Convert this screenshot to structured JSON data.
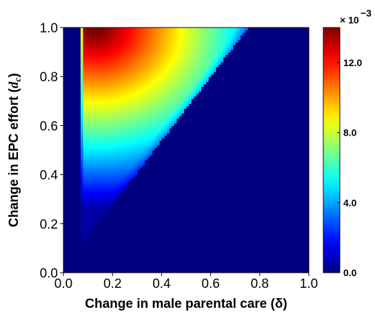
{
  "chart_data": {
    "type": "heatmap",
    "title": "",
    "xlabel": "Change in male parental care (δ)",
    "ylabel": "Change in EPC effort (d_c)",
    "ylabel_parts": {
      "main": "Change in EPC effort (",
      "symbol": "d",
      "sub": "c",
      "close": ")"
    },
    "xlim": [
      0.0,
      1.0
    ],
    "ylim": [
      0.0,
      1.0
    ],
    "x_ticks": [
      "0.0",
      "0.2",
      "0.4",
      "0.6",
      "0.8",
      "1.0"
    ],
    "y_ticks": [
      "0.0",
      "0.2",
      "0.4",
      "0.6",
      "0.8",
      "1.0"
    ],
    "background_value": 0.0,
    "colorbar": {
      "colormap": "jet",
      "range": [
        0.0,
        14.0
      ],
      "scale_label": "× 10",
      "scale_exponent": "−3",
      "ticks": [
        {
          "value": 0.0,
          "label": "0.0"
        },
        {
          "value": 4.0,
          "label": "4.0"
        },
        {
          "value": 8.0,
          "label": "8.0"
        },
        {
          "value": 12.0,
          "label": "12.0"
        }
      ]
    },
    "nonzero_region": {
      "description_points": [
        {
          "x": 0.07,
          "y": 0.11
        },
        {
          "x": 0.07,
          "y": 1.0
        },
        {
          "x": 0.75,
          "y": 1.0
        }
      ],
      "peak": {
        "x": 0.13,
        "y": 1.0,
        "value": 14.0
      }
    },
    "grid": false,
    "legend": "none"
  }
}
